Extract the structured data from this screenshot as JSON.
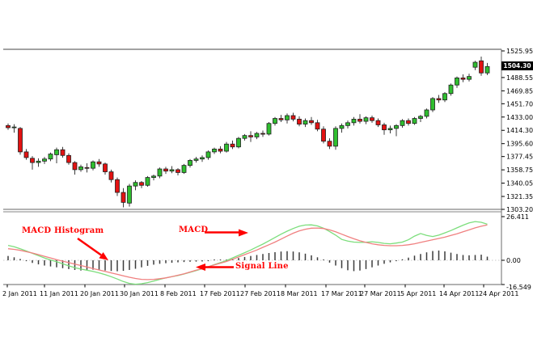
{
  "window": {
    "background": "#ffffff"
  },
  "annotations": {
    "macd_histogram": "MACD Histogram",
    "macd": "MACD",
    "signal_line": "Signal Line",
    "color": "#ff0000"
  },
  "chart_data": {
    "type": "candlestick+macd",
    "title": "",
    "grid": false,
    "legend": "none",
    "x_axis": {
      "labels": [
        "2 Jan 2011",
        "11 Jan 2011",
        "20 Jan 2011",
        "30 Jan 2011",
        "8 Feb 2011",
        "17 Feb 2011",
        "27 Feb 2011",
        "8 Mar 2011",
        "17 Mar 2011",
        "27 Mar 2011",
        "5 Apr 2011",
        "14 Apr 2011",
        "24 Apr 2011"
      ]
    },
    "price_axis": {
      "tick_labels": [
        "1525.95",
        "1488.55",
        "1469.85",
        "1451.70",
        "1433.00",
        "1414.30",
        "1395.60",
        "1377.45",
        "1358.75",
        "1340.05",
        "1321.35",
        "1303.20"
      ],
      "current_price": "1504.30"
    },
    "macd_axis": {
      "tick_labels": [
        "26.411",
        "0.00",
        "-16.549"
      ]
    },
    "price_panel": {
      "ylim": [
        1303.2,
        1525.95
      ],
      "candles": [
        [
          1421,
          1424,
          1415,
          1418
        ],
        [
          1418,
          1423,
          1411,
          1419
        ],
        [
          1417,
          1419,
          1380,
          1384
        ],
        [
          1384,
          1388,
          1373,
          1376
        ],
        [
          1375,
          1378,
          1359,
          1369
        ],
        [
          1369,
          1375,
          1363,
          1371
        ],
        [
          1371,
          1377,
          1367,
          1374
        ],
        [
          1374,
          1383,
          1371,
          1381
        ],
        [
          1380,
          1390,
          1368,
          1387
        ],
        [
          1387,
          1391,
          1376,
          1379
        ],
        [
          1379,
          1382,
          1366,
          1369
        ],
        [
          1369,
          1371,
          1352,
          1359
        ],
        [
          1359,
          1366,
          1356,
          1363
        ],
        [
          1362,
          1368,
          1355,
          1361
        ],
        [
          1361,
          1372,
          1358,
          1370
        ],
        [
          1370,
          1374,
          1363,
          1367
        ],
        [
          1367,
          1369,
          1352,
          1356
        ],
        [
          1356,
          1359,
          1341,
          1345
        ],
        [
          1345,
          1348,
          1322,
          1327
        ],
        [
          1327,
          1333,
          1306,
          1313
        ],
        [
          1312,
          1339,
          1307,
          1336
        ],
        [
          1336,
          1344,
          1330,
          1341
        ],
        [
          1341,
          1343,
          1333,
          1337
        ],
        [
          1337,
          1350,
          1335,
          1348
        ],
        [
          1348,
          1352,
          1344,
          1350
        ],
        [
          1350,
          1362,
          1347,
          1360
        ],
        [
          1360,
          1363,
          1353,
          1357
        ],
        [
          1357,
          1364,
          1354,
          1359
        ],
        [
          1359,
          1361,
          1351,
          1355
        ],
        [
          1355,
          1367,
          1353,
          1365
        ],
        [
          1365,
          1374,
          1362,
          1372
        ],
        [
          1372,
          1377,
          1369,
          1374
        ],
        [
          1374,
          1379,
          1370,
          1376
        ],
        [
          1376,
          1386,
          1373,
          1384
        ],
        [
          1384,
          1390,
          1381,
          1388
        ],
        [
          1388,
          1392,
          1382,
          1385
        ],
        [
          1385,
          1398,
          1383,
          1395
        ],
        [
          1395,
          1400,
          1388,
          1391
        ],
        [
          1391,
          1405,
          1389,
          1403
        ],
        [
          1403,
          1409,
          1400,
          1407
        ],
        [
          1407,
          1413,
          1398,
          1405
        ],
        [
          1405,
          1412,
          1402,
          1410
        ],
        [
          1410,
          1414,
          1405,
          1409
        ],
        [
          1409,
          1426,
          1407,
          1424
        ],
        [
          1424,
          1433,
          1421,
          1431
        ],
        [
          1431,
          1436,
          1426,
          1429
        ],
        [
          1429,
          1438,
          1424,
          1435
        ],
        [
          1435,
          1439,
          1427,
          1430
        ],
        [
          1430,
          1434,
          1420,
          1423
        ],
        [
          1423,
          1431,
          1419,
          1428
        ],
        [
          1428,
          1433,
          1422,
          1425
        ],
        [
          1425,
          1429,
          1413,
          1416
        ],
        [
          1416,
          1420,
          1396,
          1399
        ],
        [
          1399,
          1403,
          1388,
          1392
        ],
        [
          1392,
          1420,
          1387,
          1417
        ],
        [
          1417,
          1424,
          1411,
          1421
        ],
        [
          1421,
          1428,
          1417,
          1425
        ],
        [
          1425,
          1433,
          1421,
          1430
        ],
        [
          1430,
          1437,
          1424,
          1427
        ],
        [
          1427,
          1434,
          1423,
          1432
        ],
        [
          1432,
          1435,
          1425,
          1428
        ],
        [
          1428,
          1431,
          1419,
          1422
        ],
        [
          1422,
          1425,
          1408,
          1415
        ],
        [
          1415,
          1421,
          1410,
          1417
        ],
        [
          1417,
          1423,
          1406,
          1421
        ],
        [
          1421,
          1430,
          1418,
          1428
        ],
        [
          1428,
          1431,
          1421,
          1424
        ],
        [
          1424,
          1433,
          1422,
          1431
        ],
        [
          1431,
          1436,
          1426,
          1434
        ],
        [
          1434,
          1445,
          1431,
          1443
        ],
        [
          1443,
          1461,
          1440,
          1459
        ],
        [
          1459,
          1464,
          1453,
          1457
        ],
        [
          1457,
          1468,
          1454,
          1466
        ],
        [
          1466,
          1480,
          1463,
          1478
        ],
        [
          1478,
          1490,
          1474,
          1488
        ],
        [
          1488,
          1493,
          1482,
          1486
        ],
        [
          1486,
          1494,
          1483,
          1490
        ],
        [
          1503,
          1512,
          1499,
          1510
        ],
        [
          1512,
          1518,
          1491,
          1495
        ],
        [
          1495,
          1509,
          1492,
          1504
        ]
      ]
    },
    "macd_panel": {
      "ylim": [
        -16.549,
        26.411
      ],
      "macd_line": [
        9.0,
        8.2,
        7.0,
        5.6,
        4.2,
        2.8,
        1.4,
        0.2,
        -1.0,
        -2.4,
        -3.8,
        -5.0,
        -6.0,
        -6.8,
        -7.6,
        -8.6,
        -9.8,
        -11.2,
        -12.8,
        -14.5,
        -15.8,
        -16.3,
        -16.0,
        -15.2,
        -14.2,
        -13.0,
        -12.0,
        -11.2,
        -10.4,
        -9.4,
        -8.2,
        -7.0,
        -5.8,
        -4.4,
        -3.0,
        -1.6,
        -0.2,
        1.4,
        3.0,
        4.6,
        6.2,
        8.0,
        9.8,
        11.8,
        13.8,
        15.8,
        17.6,
        19.2,
        20.6,
        21.3,
        21.4,
        20.8,
        19.4,
        17.4,
        15.2,
        12.6,
        11.6,
        11.0,
        10.8,
        10.9,
        11.2,
        10.8,
        10.2,
        10.0,
        10.4,
        11.0,
        12.4,
        14.6,
        16.2,
        15.0,
        14.4,
        15.2,
        16.6,
        18.0,
        19.6,
        21.2,
        22.6,
        23.4,
        23.0,
        21.8
      ],
      "signal_line": [
        7.0,
        6.6,
        6.0,
        5.2,
        4.4,
        3.4,
        2.4,
        1.4,
        0.4,
        -0.6,
        -1.6,
        -2.6,
        -3.6,
        -4.6,
        -5.6,
        -6.6,
        -7.6,
        -8.6,
        -9.6,
        -10.6,
        -11.6,
        -12.4,
        -13.0,
        -13.2,
        -13.0,
        -12.6,
        -12.0,
        -11.2,
        -10.2,
        -9.2,
        -8.0,
        -6.8,
        -5.6,
        -4.4,
        -3.2,
        -2.0,
        -0.8,
        0.6,
        2.0,
        3.4,
        4.8,
        6.2,
        7.8,
        9.4,
        11.0,
        12.8,
        14.6,
        16.4,
        17.8,
        18.8,
        19.4,
        19.5,
        19.2,
        18.4,
        17.2,
        15.8,
        14.4,
        13.0,
        11.8,
        10.8,
        10.0,
        9.4,
        9.0,
        8.8,
        8.8,
        9.0,
        9.4,
        10.0,
        10.8,
        11.6,
        12.4,
        13.2,
        14.0,
        15.0,
        16.0,
        17.2,
        18.4,
        19.6,
        20.6,
        21.4
      ],
      "histogram": [
        2.6,
        1.8,
        0.8,
        -0.6,
        -1.8,
        -2.8,
        -3.6,
        -4.2,
        -4.8,
        -5.4,
        -6.0,
        -6.6,
        -7.0,
        -6.8,
        -6.4,
        -6.6,
        -7.0,
        -7.3,
        -7.5,
        -7.2,
        -6.6,
        -5.8,
        -4.8,
        -3.8,
        -3.0,
        -2.4,
        -2.0,
        -1.7,
        -1.4,
        -1.2,
        -1.0,
        -0.9,
        -0.8,
        -0.6,
        -0.4,
        -0.2,
        0.3,
        0.8,
        1.4,
        2.0,
        2.6,
        3.2,
        3.8,
        4.4,
        4.9,
        5.3,
        5.5,
        5.3,
        4.8,
        4.0,
        3.0,
        1.8,
        0.4,
        -1.6,
        -3.6,
        -5.4,
        -6.8,
        -7.4,
        -7.0,
        -6.0,
        -4.8,
        -3.6,
        -2.4,
        -1.4,
        -0.6,
        0.6,
        1.6,
        2.8,
        3.8,
        4.8,
        5.6,
        5.9,
        5.4,
        4.6,
        3.8,
        3.2,
        3.0,
        3.2,
        3.4,
        2.2
      ]
    },
    "colors": {
      "bull": "#2fbe2f",
      "bear": "#e31212",
      "outline": "#1f1f1f",
      "wick": "#3c3c3c",
      "macd_line": "#7cde7c",
      "signal_line": "#f08080",
      "histogram": "#3c3c3c",
      "border": "#848484",
      "label": "#000000",
      "price_tag_bg": "#000000",
      "price_tag_text": "#ffffff"
    }
  }
}
